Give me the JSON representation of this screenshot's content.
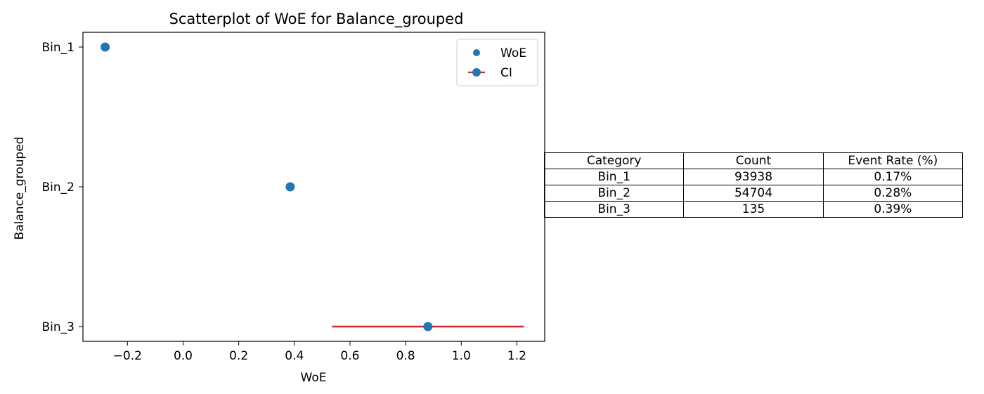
{
  "chart_data": {
    "type": "scatter",
    "title": "Scatterplot of WoE for Balance_grouped",
    "xlabel": "WoE",
    "ylabel": "Balance_grouped",
    "xlim": [
      -0.36,
      1.3
    ],
    "xticks": [
      -0.2,
      0.0,
      0.2,
      0.4,
      0.6,
      0.8,
      1.0,
      1.2
    ],
    "xtick_labels": [
      "−0.2",
      "0.0",
      "0.2",
      "0.4",
      "0.6",
      "0.8",
      "1.0",
      "1.2"
    ],
    "categories": [
      "Bin_1",
      "Bin_2",
      "Bin_3"
    ],
    "points": [
      {
        "category": "Bin_1",
        "woe": -0.28
      },
      {
        "category": "Bin_2",
        "woe": 0.385
      },
      {
        "category": "Bin_3",
        "woe": 0.88
      }
    ],
    "ci": [
      {
        "category": "Bin_3",
        "low": 0.535,
        "high": 1.225
      }
    ],
    "legend": {
      "position": "upper right",
      "entries": [
        {
          "label": "WoE",
          "marker": "dot"
        },
        {
          "label": "CI",
          "marker": "dot-with-line"
        }
      ]
    },
    "colors": {
      "point": "#1f77b4",
      "ci": "#d62728"
    },
    "table": {
      "headers": [
        "Category",
        "Count",
        "Event Rate (%)"
      ],
      "rows": [
        [
          "Bin_1",
          "93938",
          "0.17%"
        ],
        [
          "Bin_2",
          "54704",
          "0.28%"
        ],
        [
          "Bin_3",
          "135",
          "0.39%"
        ]
      ]
    }
  }
}
